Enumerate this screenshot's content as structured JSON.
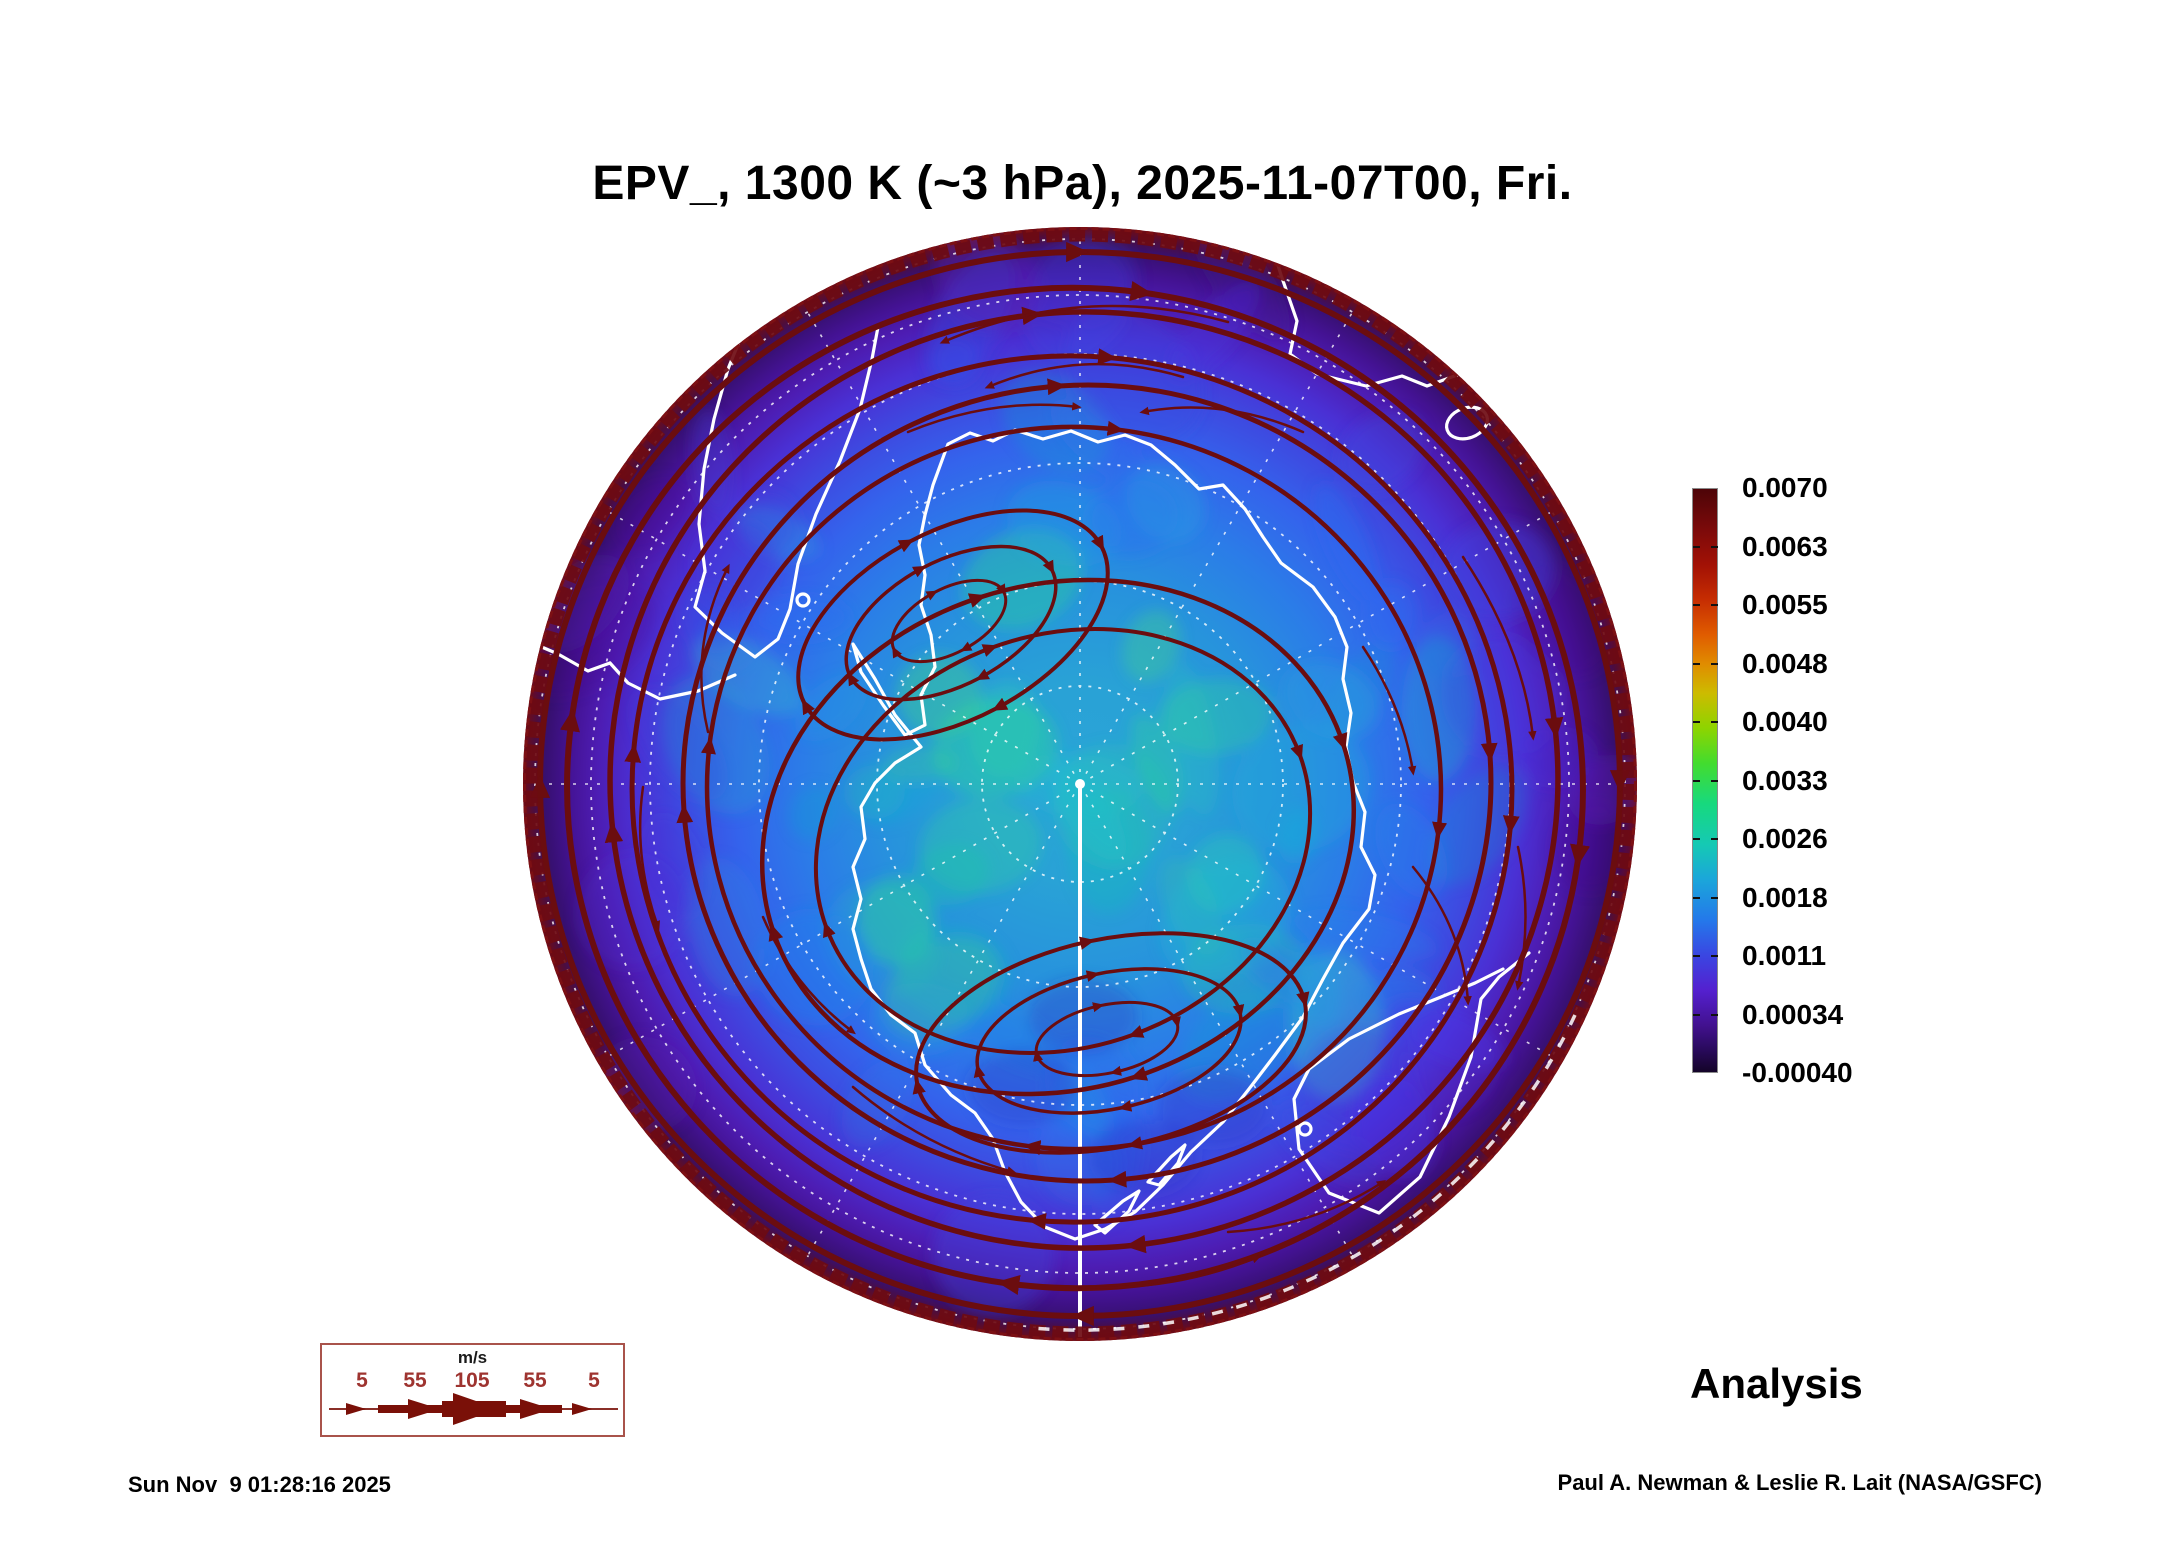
{
  "title": "EPV_, 1300 K (~3 hPa), 2025-11-07T00, Fri.",
  "analysis_label": "Analysis",
  "generated_timestamp": "Sun Nov  9 01:28:16 2025",
  "credit": "Paul A. Newman & Leslie R. Lait (NASA/GSFC)",
  "colorbar": {
    "tick_labels": [
      "0.0070",
      "0.0063",
      "0.0055",
      "0.0048",
      "0.0040",
      "0.0033",
      "0.0026",
      "0.0018",
      "0.0011",
      "0.00034",
      "-0.00040"
    ]
  },
  "wind_legend": {
    "units_label": "m/s",
    "speed_labels": [
      "5",
      "55",
      "105",
      "55",
      "5"
    ]
  },
  "chart_data": {
    "type": "heatmap",
    "projection": "south polar stereographic hemisphere",
    "field": "EPV (Ertel potential vorticity)",
    "level": "1300 K (~3 hPa)",
    "valid_time": "2025-11-07T00",
    "valid_day": "Fri.",
    "colorbar_ticks": [
      0.007,
      0.0063,
      0.0055,
      0.0048,
      0.004,
      0.0033,
      0.0026,
      0.0018,
      0.0011,
      0.00034,
      -0.0004
    ],
    "colorbar_range": [
      -0.0004,
      0.007
    ],
    "wind_speed_scale_ms": [
      5,
      55,
      105,
      55,
      5
    ],
    "wind_units": "m/s",
    "overlays": [
      "wind streamlines with arrowheads",
      "white coastlines",
      "dashed latitude-longitude graticule",
      "solid meridian line from pole"
    ],
    "visible_landmasses": [
      "Antarctica",
      "South America",
      "Australia",
      "Tasmania",
      "New Zealand",
      "southern Africa"
    ],
    "legend_position": "right",
    "annotation": "Analysis"
  }
}
